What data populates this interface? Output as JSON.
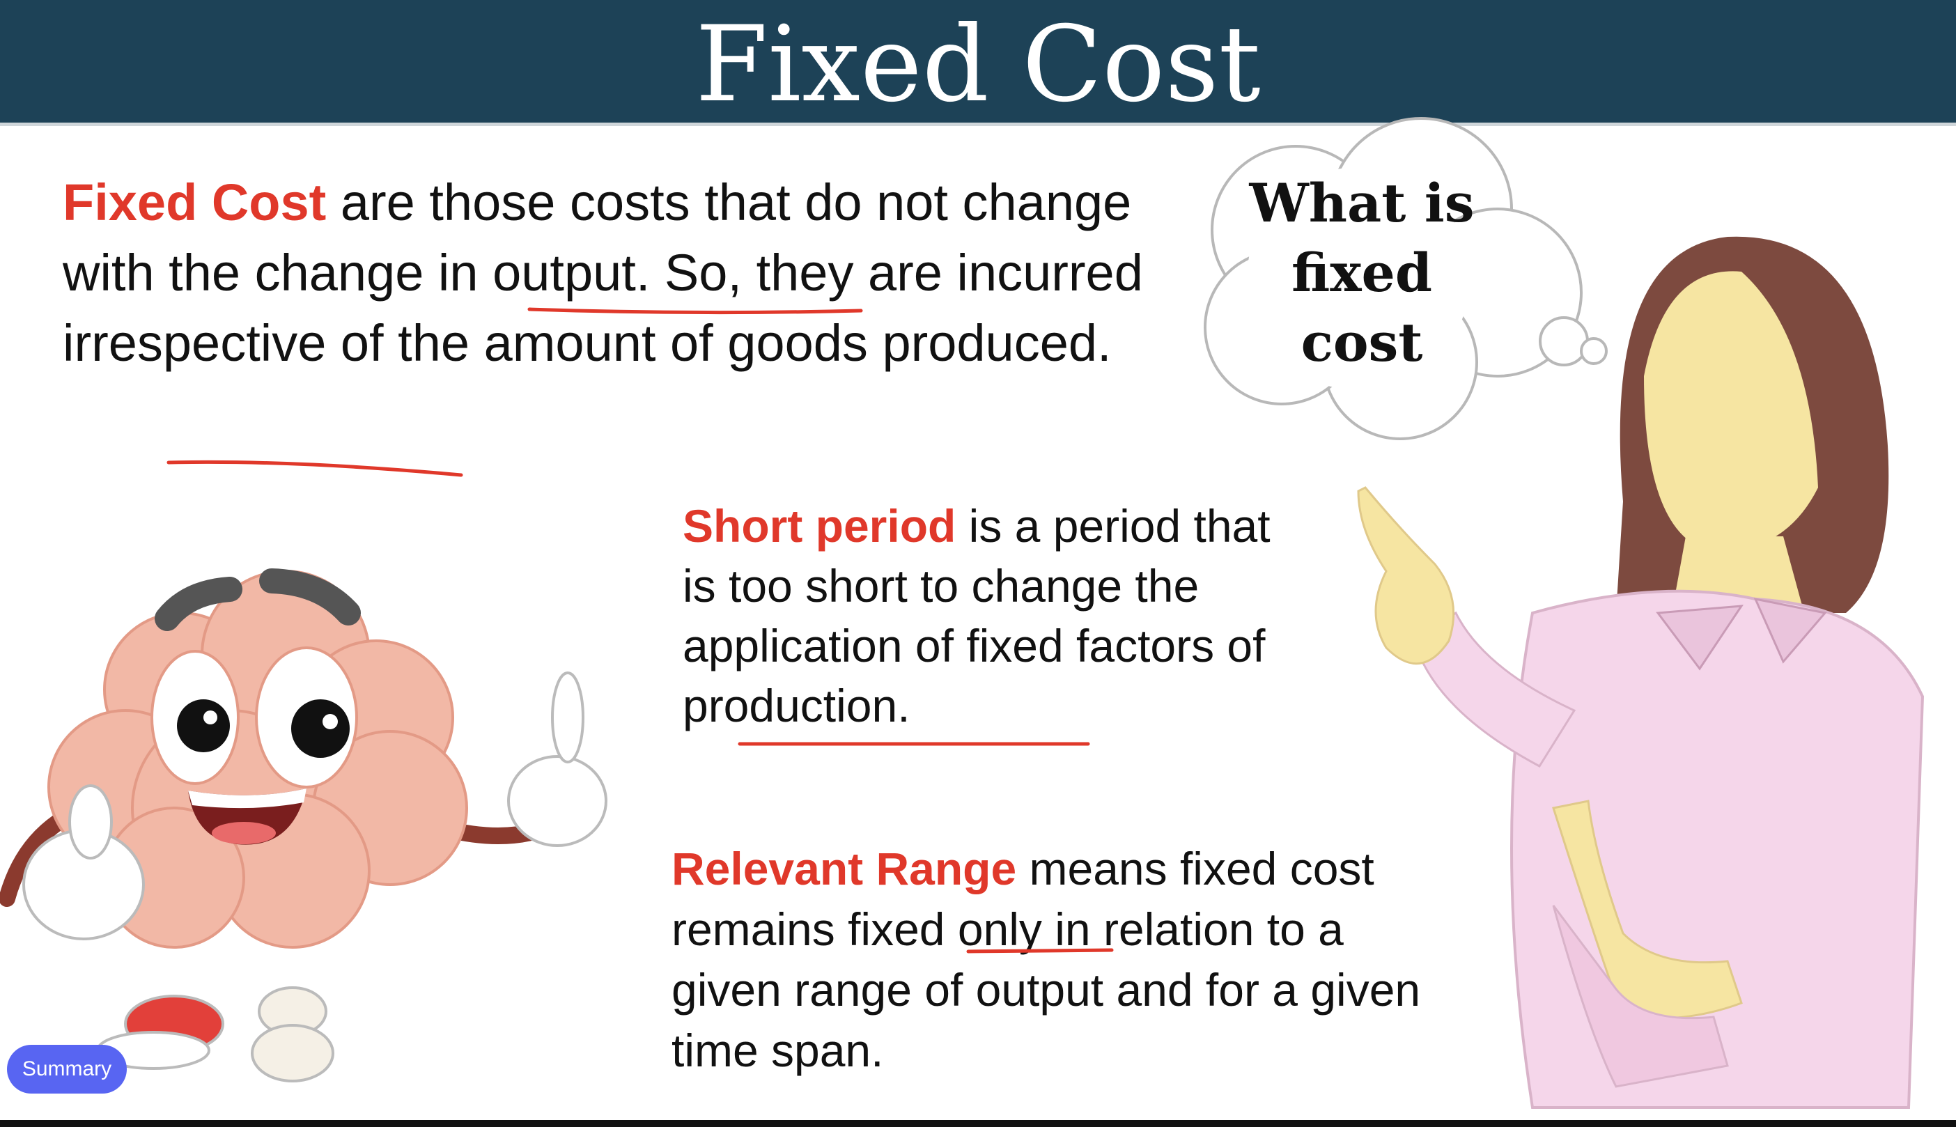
{
  "slide": {
    "title": "Fixed Cost",
    "definition": {
      "term": "Fixed Cost",
      "rest": " are those costs that do not change with the change in output. So, they are incurred irrespective of the amount of goods produced."
    },
    "short_period": {
      "term": "Short period",
      "rest": " is a period that is too short to change the application of fixed factors of production."
    },
    "relevant_range": {
      "term": "Relevant Range",
      "rest": " means fixed cost remains fixed only in relation to a given range of output and for a given time span."
    },
    "thought_bubble": {
      "line1": "What is",
      "line2": "fixed",
      "line3": "cost"
    }
  },
  "controls": {
    "summary_label": "Summary"
  },
  "colors": {
    "header": "#1d4257",
    "accent": "#e0382a",
    "button": "#5865f2"
  }
}
